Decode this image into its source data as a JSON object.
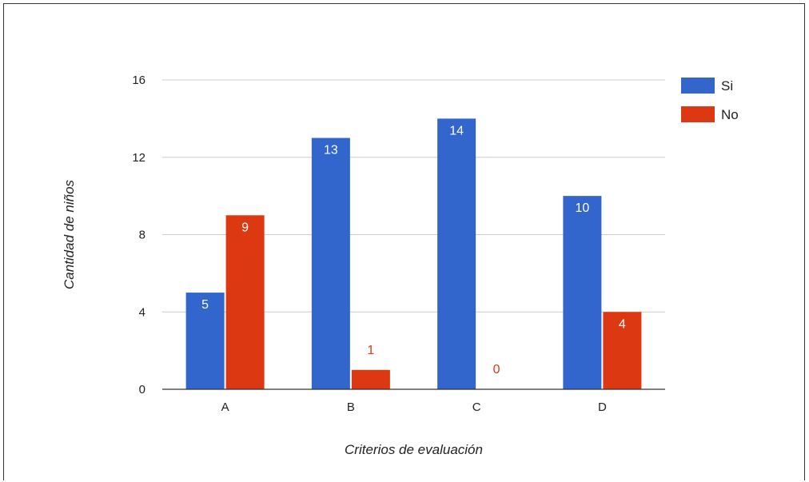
{
  "chart_data": {
    "type": "bar",
    "categories": [
      "A",
      "B",
      "C",
      "D"
    ],
    "series": [
      {
        "name": "Si",
        "values": [
          5,
          13,
          14,
          10
        ],
        "color": "#3366cc"
      },
      {
        "name": "No",
        "values": [
          9,
          1,
          0,
          4
        ],
        "color": "#dc3912"
      }
    ],
    "xlabel": "Criterios de evaluación",
    "ylabel": "Cantidad de niños",
    "ylim": [
      0,
      16
    ],
    "yticks": [
      0,
      4,
      8,
      12,
      16
    ],
    "grid": true,
    "legend": "right",
    "data_labels": true
  }
}
